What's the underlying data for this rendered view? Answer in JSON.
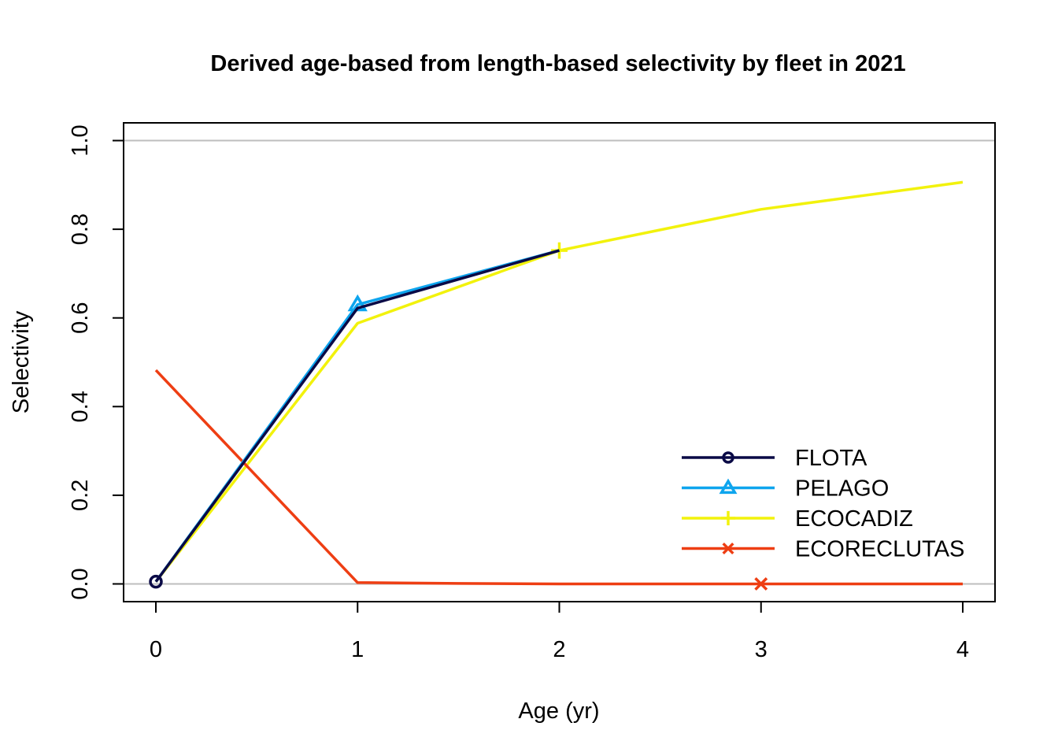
{
  "chart_data": {
    "type": "line",
    "title": "Derived age-based from length-based selectivity by fleet in 2021",
    "xlabel": "Age (yr)",
    "ylabel": "Selectivity",
    "xlim": [
      -0.16,
      4.16
    ],
    "ylim": [
      -0.04,
      1.04
    ],
    "x_ticks": [
      0,
      1,
      2,
      3,
      4
    ],
    "x_tick_labels": [
      "0",
      "1",
      "2",
      "3",
      "4"
    ],
    "y_ticks": [
      0,
      0.2,
      0.4,
      0.6,
      0.8,
      1.0
    ],
    "y_tick_labels": [
      "0.0",
      "0.2",
      "0.4",
      "0.6",
      "0.8",
      "1.0"
    ],
    "reference_lines": [
      0,
      1
    ],
    "legend_position": "bottom-right",
    "series": [
      {
        "name": "FLOTA",
        "color": "#0a0a46",
        "marker": "circle",
        "x": [
          0,
          1,
          2
        ],
        "values": [
          0.005,
          0.622,
          0.752
        ],
        "marker_x": [
          0
        ]
      },
      {
        "name": "PELAGO",
        "color": "#0ea5ee",
        "marker": "triangle",
        "x": [
          0,
          1,
          2
        ],
        "values": [
          0.005,
          0.63,
          0.752
        ],
        "marker_x": [
          1
        ]
      },
      {
        "name": "ECOCADIZ",
        "color": "#f2f20c",
        "marker": "plus",
        "x": [
          0,
          1,
          2,
          3,
          4
        ],
        "values": [
          0.005,
          0.588,
          0.752,
          0.845,
          0.906
        ],
        "marker_x": [
          2
        ]
      },
      {
        "name": "ECORECLUTAS",
        "color": "#ee3e13",
        "marker": "cross",
        "x": [
          0,
          1,
          1.5,
          2,
          3,
          4
        ],
        "values": [
          0.482,
          0.003,
          0.001,
          0.0,
          0.0,
          0.0
        ],
        "marker_x": [
          3
        ]
      }
    ]
  }
}
